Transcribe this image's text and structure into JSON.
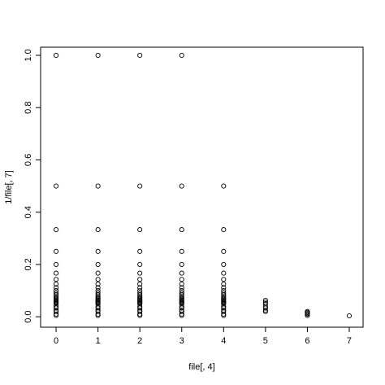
{
  "chart_data": {
    "type": "scatter",
    "x_label": "file[, 4]",
    "y_label": "1/file[, 7]",
    "x": [
      0,
      0,
      0,
      0,
      0,
      0,
      0,
      0,
      0,
      0,
      0,
      0,
      0,
      0,
      0,
      0,
      0,
      0,
      0,
      0,
      0,
      0,
      0,
      0,
      0,
      0,
      1,
      1,
      1,
      1,
      1,
      1,
      1,
      1,
      1,
      1,
      1,
      1,
      1,
      1,
      1,
      1,
      1,
      1,
      1,
      1,
      1,
      1,
      1,
      1,
      1,
      1,
      2,
      2,
      2,
      2,
      2,
      2,
      2,
      2,
      2,
      2,
      2,
      2,
      2,
      2,
      2,
      2,
      2,
      2,
      2,
      2,
      2,
      2,
      2,
      2,
      2,
      2,
      3,
      3,
      3,
      3,
      3,
      3,
      3,
      3,
      3,
      3,
      3,
      3,
      3,
      3,
      3,
      3,
      3,
      3,
      3,
      3,
      3,
      3,
      3,
      3,
      3,
      3,
      4,
      4,
      4,
      4,
      4,
      4,
      4,
      4,
      4,
      4,
      4,
      4,
      4,
      4,
      4,
      4,
      4,
      4,
      4,
      4,
      4,
      4,
      4,
      4,
      4,
      5,
      5,
      5,
      5,
      5,
      5,
      5,
      6,
      6,
      6,
      6,
      6,
      7
    ],
    "values": [
      1,
      0.5,
      0.3333,
      0.25,
      0.2,
      0.1667,
      0.1429,
      0.125,
      0.1111,
      0.1,
      0.0909,
      0.0833,
      0.0769,
      0.0714,
      0.0667,
      0.0625,
      0.0588,
      0.0556,
      0.0526,
      0.05,
      0.04,
      0.0333,
      0.025,
      0.02,
      0.01,
      0.005,
      1,
      0.5,
      0.3333,
      0.25,
      0.2,
      0.1667,
      0.1429,
      0.125,
      0.1111,
      0.1,
      0.0909,
      0.0833,
      0.0769,
      0.0714,
      0.0667,
      0.0625,
      0.0588,
      0.0556,
      0.0526,
      0.05,
      0.04,
      0.0333,
      0.025,
      0.02,
      0.01,
      0.005,
      1,
      0.5,
      0.3333,
      0.25,
      0.2,
      0.1667,
      0.1429,
      0.125,
      0.1111,
      0.1,
      0.0909,
      0.0833,
      0.0769,
      0.0714,
      0.0667,
      0.0625,
      0.0588,
      0.0556,
      0.0526,
      0.05,
      0.04,
      0.0333,
      0.025,
      0.02,
      0.01,
      0.005,
      1,
      0.5,
      0.3333,
      0.25,
      0.2,
      0.1667,
      0.1429,
      0.125,
      0.1111,
      0.1,
      0.0909,
      0.0833,
      0.0769,
      0.0714,
      0.0667,
      0.0625,
      0.0588,
      0.0556,
      0.0526,
      0.05,
      0.04,
      0.0333,
      0.025,
      0.02,
      0.01,
      0.005,
      0.5,
      0.3333,
      0.25,
      0.2,
      0.1667,
      0.1429,
      0.125,
      0.1111,
      0.1,
      0.0909,
      0.0833,
      0.0769,
      0.0714,
      0.0667,
      0.0625,
      0.0588,
      0.0556,
      0.0526,
      0.05,
      0.04,
      0.0333,
      0.025,
      0.02,
      0.01,
      0.005,
      0.0625,
      0.0556,
      0.05,
      0.04,
      0.0333,
      0.025,
      0.02,
      0.02,
      0.0167,
      0.0125,
      0.01,
      0.005,
      0.0036
    ],
    "color": "#000000",
    "xlim": [
      -0.37,
      7.33
    ],
    "ylim": [
      -0.04,
      1.031
    ],
    "xticks": [
      0,
      1,
      2,
      3,
      4,
      5,
      6,
      7
    ],
    "yticks": [
      {
        "value": 0,
        "label": "0.0"
      },
      0.2,
      0.4,
      0.6,
      0.8,
      {
        "value": 1,
        "label": "1.0"
      }
    ]
  }
}
